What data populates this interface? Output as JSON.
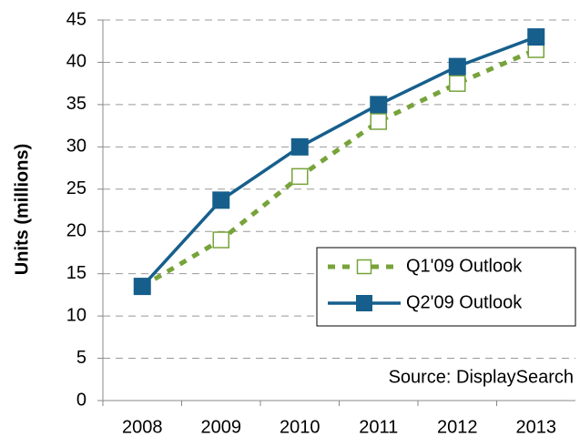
{
  "chart_data": {
    "type": "line",
    "y_label": "Units (millions)",
    "annotation": "Source: DisplaySearch",
    "categories": [
      "2008",
      "2009",
      "2010",
      "2011",
      "2012",
      "2013"
    ],
    "series": [
      {
        "name": "Q1'09 Outlook",
        "color": "#77a33a",
        "dashed": true,
        "marker": "open-square",
        "values": [
          13.5,
          19,
          26.5,
          33,
          37.5,
          41.5
        ]
      },
      {
        "name": "Q2'09 Outlook",
        "color": "#165f8c",
        "dashed": false,
        "marker": "filled-square",
        "values": [
          13.5,
          23.7,
          30,
          35,
          39.5,
          43
        ]
      }
    ],
    "ylim": [
      0,
      45
    ],
    "yticks": [
      0,
      5,
      10,
      15,
      20,
      25,
      30,
      35,
      40,
      45
    ],
    "grid": true
  }
}
